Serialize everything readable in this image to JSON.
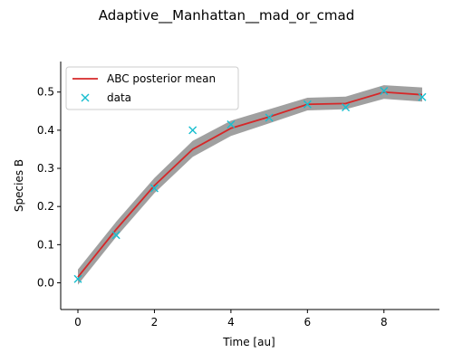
{
  "chart_data": {
    "type": "line",
    "title": "Adaptive__Manhattan__mad_or_cmad",
    "xlabel": "Time [au]",
    "ylabel": "Species B",
    "xlim": [
      -0.45,
      9.45
    ],
    "ylim": [
      -0.07,
      0.58
    ],
    "xticks": [
      0,
      2,
      4,
      6,
      8
    ],
    "yticks": [
      0.0,
      0.1,
      0.2,
      0.3,
      0.4,
      0.5
    ],
    "ytick_labels": [
      "0.0",
      "0.1",
      "0.2",
      "0.3",
      "0.4",
      "0.5"
    ],
    "x": [
      0,
      1,
      2,
      3,
      4,
      5,
      6,
      7,
      8,
      9
    ],
    "series": [
      {
        "name": "ABC posterior mean",
        "kind": "line",
        "color": "#d62728",
        "values": [
          0.015,
          0.14,
          0.255,
          0.35,
          0.405,
          0.435,
          0.468,
          0.47,
          0.5,
          0.493
        ]
      },
      {
        "name": "data",
        "kind": "marker",
        "marker": "x",
        "color": "#17becf",
        "values": [
          0.01,
          0.125,
          0.248,
          0.4,
          0.415,
          0.433,
          0.468,
          0.46,
          0.503,
          0.487
        ]
      }
    ],
    "band": {
      "color": "#808080",
      "lower": [
        -0.005,
        0.12,
        0.235,
        0.33,
        0.385,
        0.418,
        0.452,
        0.455,
        0.482,
        0.475
      ],
      "upper": [
        0.035,
        0.16,
        0.275,
        0.372,
        0.425,
        0.455,
        0.485,
        0.488,
        0.518,
        0.512
      ]
    },
    "legend_position": "top-left",
    "grid": false
  }
}
